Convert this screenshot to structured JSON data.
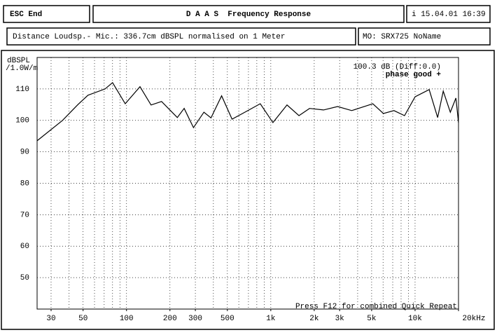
{
  "header": {
    "menu": "ESC End",
    "title": "D A A S  Frequency Response",
    "timestamp": "i 15.04.01 16:39",
    "info": "Distance Loudsp.- Mic.: 336.7cm dBSPL normalised on 1 Meter",
    "model": "MO: SRX725 NoName"
  },
  "chart_data": {
    "type": "line",
    "y_label": [
      "dBSPL",
      "/1.0W/m"
    ],
    "annotations": [
      "100.3 dB (Diff:0.0)",
      "phase good +",
      "Press F12 for combined Quick Repeat"
    ],
    "x_log": true,
    "grid": true,
    "xlim": [
      24,
      20000
    ],
    "ylim": [
      40,
      120
    ],
    "xticks": [
      30,
      50,
      100,
      200,
      300,
      500,
      {
        "value": 1000,
        "label": "1k"
      },
      {
        "value": 2000,
        "label": "2k"
      },
      {
        "value": 3000,
        "label": "3k"
      },
      {
        "value": 5000,
        "label": "5k"
      },
      {
        "value": 10000,
        "label": "10k"
      },
      {
        "value": 20000,
        "label": "20kHz"
      }
    ],
    "xminor": [
      30,
      40,
      50,
      60,
      70,
      80,
      90,
      100,
      200,
      300,
      400,
      500,
      600,
      700,
      800,
      900,
      1000,
      2000,
      3000,
      4000,
      5000,
      6000,
      7000,
      8000,
      9000,
      10000
    ],
    "yticks": [
      50,
      60,
      70,
      80,
      90,
      100,
      110
    ],
    "ygrid": [
      50,
      60,
      70,
      80,
      90,
      100,
      110
    ],
    "series": [
      {
        "color": "#000000",
        "x": [
          24,
          36,
          46,
          54,
          71,
          80,
          98,
          124,
          148,
          175,
          225,
          251,
          291,
          344,
          385,
          456,
          539,
          638,
          845,
          1035,
          1295,
          1567,
          1855,
          2321,
          2905,
          3639,
          5093,
          6030,
          7140,
          8450,
          10000,
          12530,
          14330,
          15680,
          17540,
          19190,
          20000
        ],
        "values": [
          93.5,
          100,
          105,
          108,
          110,
          112,
          105.3,
          110.7,
          104.9,
          106,
          100.9,
          103.8,
          97.7,
          102.6,
          100.8,
          107.8,
          100.4,
          102.2,
          105.3,
          99.3,
          104.9,
          101.5,
          103.8,
          103.3,
          104.4,
          103.1,
          105.3,
          102.2,
          103.1,
          101.5,
          107.5,
          109.8,
          100.9,
          109.3,
          102.6,
          107.1,
          99.3
        ]
      }
    ]
  }
}
